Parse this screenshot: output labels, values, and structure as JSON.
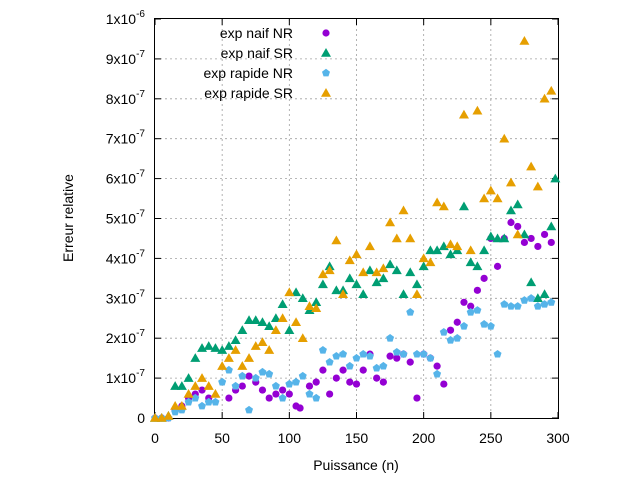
{
  "chart_data": {
    "type": "scatter",
    "xlabel": "Puissance (n)",
    "ylabel": "Erreur relative",
    "xlim": [
      0,
      300
    ],
    "ylim": [
      0,
      1e-06
    ],
    "grid": true,
    "legend_position": "top-right",
    "x_ticks": [
      0,
      50,
      100,
      150,
      200,
      250,
      300
    ],
    "y_ticks": [
      {
        "value": 0,
        "mantissa": "0",
        "exponent": ""
      },
      {
        "value": 1e-07,
        "mantissa": "1x10",
        "exponent": "-7"
      },
      {
        "value": 2e-07,
        "mantissa": "2x10",
        "exponent": "-7"
      },
      {
        "value": 3e-07,
        "mantissa": "3x10",
        "exponent": "-7"
      },
      {
        "value": 4e-07,
        "mantissa": "4x10",
        "exponent": "-7"
      },
      {
        "value": 5e-07,
        "mantissa": "5x10",
        "exponent": "-7"
      },
      {
        "value": 6e-07,
        "mantissa": "6x10",
        "exponent": "-7"
      },
      {
        "value": 7e-07,
        "mantissa": "7x10",
        "exponent": "-7"
      },
      {
        "value": 8e-07,
        "mantissa": "8x10",
        "exponent": "-7"
      },
      {
        "value": 9e-07,
        "mantissa": "9x10",
        "exponent": "-7"
      },
      {
        "value": 1e-06,
        "mantissa": "1x10",
        "exponent": "-6"
      }
    ],
    "series": [
      {
        "name": "exp naif NR",
        "marker": "circle",
        "color": "#9400d3",
        "points": [
          [
            0,
            0
          ],
          [
            5,
            0
          ],
          [
            10,
            0
          ],
          [
            15,
            2e-08
          ],
          [
            20,
            3e-08
          ],
          [
            25,
            5e-08
          ],
          [
            30,
            6e-08
          ],
          [
            35,
            7e-08
          ],
          [
            40,
            5e-08
          ],
          [
            55,
            5e-08
          ],
          [
            60,
            7e-08
          ],
          [
            65,
            8e-08
          ],
          [
            70,
            1.05e-07
          ],
          [
            75,
            9e-08
          ],
          [
            80,
            7e-08
          ],
          [
            85,
            5e-08
          ],
          [
            90,
            6e-08
          ],
          [
            95,
            7e-08
          ],
          [
            100,
            6e-08
          ],
          [
            105,
            3e-08
          ],
          [
            108,
            2.5e-08
          ],
          [
            115,
            8e-08
          ],
          [
            120,
            9e-08
          ],
          [
            125,
            1.2e-07
          ],
          [
            130,
            6e-08
          ],
          [
            135,
            1e-07
          ],
          [
            140,
            1.2e-07
          ],
          [
            145,
            9e-08
          ],
          [
            150,
            8.5e-08
          ],
          [
            155,
            1.2e-07
          ],
          [
            160,
            1.6e-07
          ],
          [
            165,
            1e-07
          ],
          [
            170,
            9e-08
          ],
          [
            175,
            1.55e-07
          ],
          [
            180,
            1.5e-07
          ],
          [
            185,
            1.6e-07
          ],
          [
            190,
            1.4e-07
          ],
          [
            195,
            5e-08
          ],
          [
            200,
            1.6e-07
          ],
          [
            205,
            1.5e-07
          ],
          [
            210,
            1.3e-07
          ],
          [
            215,
            8.5e-08
          ],
          [
            220,
            2.2e-07
          ],
          [
            225,
            2.4e-07
          ],
          [
            230,
            2.9e-07
          ],
          [
            235,
            2.8e-07
          ],
          [
            240,
            3.2e-07
          ],
          [
            245,
            3.5e-07
          ],
          [
            250,
            4.5e-07
          ],
          [
            255,
            3.8e-07
          ],
          [
            260,
            4.5e-07
          ],
          [
            265,
            4.9e-07
          ],
          [
            270,
            4.8e-07
          ],
          [
            275,
            4.4e-07
          ],
          [
            280,
            4.5e-07
          ],
          [
            285,
            4.3e-07
          ],
          [
            290,
            4.6e-07
          ],
          [
            295,
            4.4e-07
          ]
        ]
      },
      {
        "name": "exp naif SR",
        "marker": "triangle",
        "color": "#009e73",
        "points": [
          [
            0,
            0
          ],
          [
            5,
            0
          ],
          [
            10,
            5e-09
          ],
          [
            15,
            8e-08
          ],
          [
            20,
            8e-08
          ],
          [
            25,
            1e-07
          ],
          [
            30,
            1.5e-07
          ],
          [
            35,
            1.75e-07
          ],
          [
            40,
            1.8e-07
          ],
          [
            45,
            1.75e-07
          ],
          [
            50,
            1.7e-07
          ],
          [
            55,
            1.8e-07
          ],
          [
            60,
            1.95e-07
          ],
          [
            65,
            2.2e-07
          ],
          [
            70,
            2.45e-07
          ],
          [
            75,
            2.45e-07
          ],
          [
            80,
            2.4e-07
          ],
          [
            85,
            2.3e-07
          ],
          [
            90,
            2.5e-07
          ],
          [
            95,
            2.85e-07
          ],
          [
            100,
            2.2e-07
          ],
          [
            105,
            3.15e-07
          ],
          [
            110,
            3e-07
          ],
          [
            115,
            2.7e-07
          ],
          [
            120,
            2.9e-07
          ],
          [
            125,
            3.35e-07
          ],
          [
            130,
            3.8e-07
          ],
          [
            135,
            3.2e-07
          ],
          [
            140,
            3.2e-07
          ],
          [
            145,
            3.5e-07
          ],
          [
            150,
            3.35e-07
          ],
          [
            155,
            3.1e-07
          ],
          [
            160,
            3.7e-07
          ],
          [
            165,
            3.4e-07
          ],
          [
            170,
            3.5e-07
          ],
          [
            175,
            3.85e-07
          ],
          [
            180,
            3.7e-07
          ],
          [
            185,
            3.1e-07
          ],
          [
            190,
            3.65e-07
          ],
          [
            195,
            3.35e-07
          ],
          [
            200,
            3.8e-07
          ],
          [
            205,
            4.2e-07
          ],
          [
            210,
            4.2e-07
          ],
          [
            215,
            4.3e-07
          ],
          [
            220,
            4.1e-07
          ],
          [
            225,
            4.2e-07
          ],
          [
            230,
            5.3e-07
          ],
          [
            235,
            3.9e-07
          ],
          [
            240,
            3.8e-07
          ],
          [
            245,
            4.2e-07
          ],
          [
            250,
            4.55e-07
          ],
          [
            255,
            4.5e-07
          ],
          [
            260,
            4.5e-07
          ],
          [
            265,
            5.2e-07
          ],
          [
            270,
            5.35e-07
          ],
          [
            275,
            4.6e-07
          ],
          [
            280,
            3.4e-07
          ],
          [
            285,
            3e-07
          ],
          [
            290,
            3.1e-07
          ],
          [
            295,
            4.8e-07
          ],
          [
            298,
            6e-07
          ]
        ]
      },
      {
        "name": "exp rapide NR",
        "marker": "pentagon",
        "color": "#56b4e9",
        "points": [
          [
            0,
            0
          ],
          [
            5,
            0
          ],
          [
            10,
            0
          ],
          [
            15,
            1.5e-08
          ],
          [
            20,
            2e-08
          ],
          [
            25,
            4e-08
          ],
          [
            30,
            5e-08
          ],
          [
            35,
            3e-08
          ],
          [
            40,
            4e-08
          ],
          [
            45,
            4e-08
          ],
          [
            50,
            9e-08
          ],
          [
            55,
            1.2e-07
          ],
          [
            60,
            8e-08
          ],
          [
            65,
            1.05e-07
          ],
          [
            70,
            2e-08
          ],
          [
            75,
            1e-07
          ],
          [
            80,
            1.15e-07
          ],
          [
            85,
            1.1e-07
          ],
          [
            90,
            8e-08
          ],
          [
            95,
            5e-08
          ],
          [
            100,
            8.5e-08
          ],
          [
            105,
            9e-08
          ],
          [
            110,
            1.05e-07
          ],
          [
            115,
            6e-08
          ],
          [
            120,
            5e-08
          ],
          [
            125,
            1.7e-07
          ],
          [
            130,
            1.4e-07
          ],
          [
            135,
            1.55e-07
          ],
          [
            140,
            1.6e-07
          ],
          [
            145,
            1.3e-07
          ],
          [
            150,
            1.5e-07
          ],
          [
            155,
            1.6e-07
          ],
          [
            160,
            1.55e-07
          ],
          [
            165,
            1.25e-07
          ],
          [
            170,
            1.3e-07
          ],
          [
            175,
            2e-07
          ],
          [
            180,
            1.65e-07
          ],
          [
            185,
            1.6e-07
          ],
          [
            190,
            2.65e-07
          ],
          [
            195,
            1.6e-07
          ],
          [
            200,
            1.6e-07
          ],
          [
            205,
            1.5e-07
          ],
          [
            210,
            1.1e-07
          ],
          [
            215,
            2.15e-07
          ],
          [
            220,
            1.95e-07
          ],
          [
            225,
            2e-07
          ],
          [
            230,
            2.3e-07
          ],
          [
            235,
            2.65e-07
          ],
          [
            240,
            2.7e-07
          ],
          [
            245,
            2.35e-07
          ],
          [
            250,
            2.3e-07
          ],
          [
            255,
            1.6e-07
          ],
          [
            260,
            2.85e-07
          ],
          [
            265,
            2.8e-07
          ],
          [
            270,
            2.8e-07
          ],
          [
            275,
            2.95e-07
          ],
          [
            280,
            3e-07
          ],
          [
            285,
            2.8e-07
          ],
          [
            290,
            2.85e-07
          ],
          [
            295,
            2.9e-07
          ]
        ]
      },
      {
        "name": "exp rapide SR",
        "marker": "triangle",
        "color": "#e69f00",
        "points": [
          [
            0,
            0
          ],
          [
            5,
            0
          ],
          [
            10,
            5e-09
          ],
          [
            15,
            3e-08
          ],
          [
            20,
            3e-08
          ],
          [
            25,
            6e-08
          ],
          [
            30,
            8e-08
          ],
          [
            35,
            1e-07
          ],
          [
            40,
            8e-08
          ],
          [
            45,
            6e-08
          ],
          [
            50,
            1.3e-07
          ],
          [
            55,
            1.5e-07
          ],
          [
            60,
            1.7e-07
          ],
          [
            65,
            1.3e-07
          ],
          [
            70,
            1.5e-07
          ],
          [
            75,
            1.8e-07
          ],
          [
            80,
            1.9e-07
          ],
          [
            85,
            1.7e-07
          ],
          [
            90,
            2.2e-07
          ],
          [
            95,
            2.5e-07
          ],
          [
            100,
            3.15e-07
          ],
          [
            105,
            2.4e-07
          ],
          [
            110,
            2e-07
          ],
          [
            115,
            2.8e-07
          ],
          [
            120,
            2.75e-07
          ],
          [
            125,
            3.6e-07
          ],
          [
            130,
            3.7e-07
          ],
          [
            135,
            4.45e-07
          ],
          [
            140,
            3.1e-07
          ],
          [
            145,
            3.95e-07
          ],
          [
            150,
            4.1e-07
          ],
          [
            155,
            3.65e-07
          ],
          [
            160,
            4.3e-07
          ],
          [
            165,
            3.65e-07
          ],
          [
            170,
            3.75e-07
          ],
          [
            175,
            4.9e-07
          ],
          [
            180,
            4.5e-07
          ],
          [
            185,
            5.2e-07
          ],
          [
            190,
            4.5e-07
          ],
          [
            195,
            3.1e-07
          ],
          [
            200,
            4e-07
          ],
          [
            205,
            3.9e-07
          ],
          [
            210,
            5.4e-07
          ],
          [
            215,
            5.3e-07
          ],
          [
            220,
            4.35e-07
          ],
          [
            225,
            4.3e-07
          ],
          [
            230,
            7.6e-07
          ],
          [
            235,
            4.2e-07
          ],
          [
            240,
            7.7e-07
          ],
          [
            245,
            5.5e-07
          ],
          [
            250,
            5.7e-07
          ],
          [
            255,
            5.5e-07
          ],
          [
            260,
            7e-07
          ],
          [
            265,
            5.9e-07
          ],
          [
            270,
            4.6e-07
          ],
          [
            275,
            9.45e-07
          ],
          [
            280,
            6.3e-07
          ],
          [
            285,
            5.8e-07
          ],
          [
            290,
            8e-07
          ],
          [
            295,
            8.2e-07
          ]
        ]
      }
    ]
  }
}
